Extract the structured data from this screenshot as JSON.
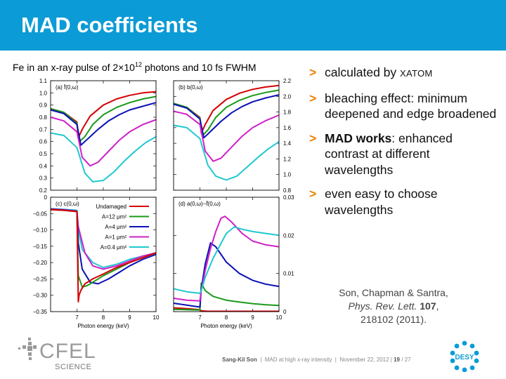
{
  "header": {
    "title": "MAD coefficients"
  },
  "caption": {
    "prefix": "Fe in an x-ray pulse of 2×10",
    "exp": "12",
    "suffix": " photons and 10 fs FWHM"
  },
  "bullets": [
    {
      "marker": ">",
      "parts": [
        {
          "t": "calculated by "
        },
        {
          "t": "XATOM",
          "cls": "smallcaps"
        }
      ]
    },
    {
      "marker": ">",
      "parts": [
        {
          "t": "bleaching effect: minimum deepened and edge broadened"
        }
      ]
    },
    {
      "marker": ">",
      "parts": [
        {
          "t": "MAD works",
          "b": true
        },
        {
          "t": ": enhanced contrast at different wavelengths"
        }
      ]
    },
    {
      "marker": ">",
      "parts": [
        {
          "t": "even easy to choose wavelengths"
        }
      ]
    }
  ],
  "reference": {
    "authors": "Son, Chapman & Santra,",
    "journal": "Phys. Rev. Lett.",
    "volume": "107",
    "pages_year": "218102 (2011)."
  },
  "footer": {
    "author": "Sang-Kil Son",
    "talk": "MAD at high x-ray intensity",
    "date": "November 22, 2012",
    "page": "19",
    "total": "/ 27"
  },
  "logos": {
    "cfel_main": "CFEL",
    "cfel_sub": "SCIENCE",
    "desy": "DESY"
  },
  "colors": {
    "accent": "#0b9bd6",
    "marker": "#ef7d00",
    "undamaged": "#d40000",
    "a12": "#1a9a1a",
    "a4": "#0a10b4",
    "a1": "#d020c8",
    "a04": "#20c8d0"
  },
  "chart_data": [
    {
      "type": "line",
      "panel_label": "(a) f̄(0,ω)",
      "xlim": [
        6,
        10
      ],
      "ylim": [
        0.2,
        1.1
      ],
      "yticks": [
        "0.2",
        "0.3",
        "0.4",
        "0.5",
        "0.6",
        "0.7",
        "0.8",
        "0.9",
        "1.0",
        "1.1"
      ],
      "series": [
        {
          "color": "undamaged",
          "x": [
            6,
            6.5,
            7,
            7.05,
            7.2,
            7.5,
            8,
            8.5,
            9,
            9.5,
            10
          ],
          "y": [
            0.87,
            0.84,
            0.76,
            0.63,
            0.7,
            0.81,
            0.9,
            0.95,
            0.98,
            1.0,
            1.01
          ]
        },
        {
          "color": "a12",
          "x": [
            6,
            6.5,
            7,
            7.1,
            7.3,
            7.6,
            8,
            8.5,
            9,
            9.5,
            10
          ],
          "y": [
            0.87,
            0.84,
            0.75,
            0.6,
            0.64,
            0.74,
            0.82,
            0.88,
            0.92,
            0.95,
            0.97
          ]
        },
        {
          "color": "a4",
          "x": [
            6,
            6.5,
            7,
            7.15,
            7.4,
            7.8,
            8.2,
            8.6,
            9,
            9.5,
            10
          ],
          "y": [
            0.86,
            0.83,
            0.74,
            0.57,
            0.62,
            0.7,
            0.77,
            0.82,
            0.86,
            0.89,
            0.92
          ]
        },
        {
          "color": "a1",
          "x": [
            6,
            6.5,
            7,
            7.2,
            7.5,
            7.8,
            8.2,
            8.6,
            9,
            9.5,
            10
          ],
          "y": [
            0.8,
            0.77,
            0.68,
            0.47,
            0.4,
            0.43,
            0.52,
            0.61,
            0.68,
            0.74,
            0.78
          ]
        },
        {
          "color": "a04",
          "x": [
            6,
            6.5,
            7,
            7.3,
            7.6,
            8,
            8.4,
            8.8,
            9.2,
            9.6,
            10
          ],
          "y": [
            0.67,
            0.65,
            0.55,
            0.34,
            0.27,
            0.28,
            0.35,
            0.44,
            0.52,
            0.59,
            0.64
          ]
        }
      ]
    },
    {
      "type": "line",
      "panel_label": "(b) b(0,ω)",
      "xlim": [
        6,
        10
      ],
      "ylim": [
        0.8,
        2.2
      ],
      "yticks": [
        "0.8",
        "1.0",
        "1.2",
        "1.4",
        "1.6",
        "1.8",
        "2.0",
        "2.2"
      ],
      "series": [
        {
          "color": "undamaged",
          "x": [
            6,
            6.5,
            7,
            7.05,
            7.2,
            7.5,
            8,
            8.5,
            9,
            9.5,
            10
          ],
          "y": [
            1.91,
            1.86,
            1.73,
            1.53,
            1.64,
            1.82,
            1.96,
            2.04,
            2.09,
            2.12,
            2.14
          ]
        },
        {
          "color": "a12",
          "x": [
            6,
            6.5,
            7,
            7.1,
            7.3,
            7.6,
            8,
            8.5,
            9,
            9.5,
            10
          ],
          "y": [
            1.91,
            1.86,
            1.72,
            1.5,
            1.57,
            1.73,
            1.86,
            1.95,
            2.01,
            2.05,
            2.08
          ]
        },
        {
          "color": "a4",
          "x": [
            6,
            6.5,
            7,
            7.15,
            7.4,
            7.8,
            8.2,
            8.6,
            9,
            9.5,
            10
          ],
          "y": [
            1.9,
            1.85,
            1.71,
            1.47,
            1.55,
            1.68,
            1.79,
            1.87,
            1.93,
            1.98,
            2.02
          ]
        },
        {
          "color": "a1",
          "x": [
            6,
            6.5,
            7,
            7.2,
            7.5,
            7.8,
            8.2,
            8.6,
            9,
            9.5,
            10
          ],
          "y": [
            1.81,
            1.77,
            1.64,
            1.3,
            1.17,
            1.21,
            1.35,
            1.49,
            1.6,
            1.69,
            1.76
          ]
        },
        {
          "color": "a04",
          "x": [
            6,
            6.5,
            7,
            7.3,
            7.6,
            8,
            8.4,
            8.8,
            9.2,
            9.6,
            10
          ],
          "y": [
            1.63,
            1.6,
            1.46,
            1.12,
            0.98,
            0.93,
            0.98,
            1.1,
            1.22,
            1.33,
            1.42
          ]
        }
      ]
    },
    {
      "type": "line",
      "panel_label": "(c) c(0,ω)",
      "xlim": [
        6,
        10
      ],
      "ylim": [
        -0.35,
        0
      ],
      "xticks": [
        "7",
        "8",
        "9",
        "10"
      ],
      "yticks": [
        "−0.35",
        "−0.30",
        "−0.25",
        "−0.20",
        "−0.15",
        "−0.10",
        "−0.05",
        "0"
      ],
      "xlabel": "Photon energy (keV)",
      "legend": [
        "Undamaged",
        "A=12 μm²",
        "A=4 μm²",
        "A=1 μm²",
        "A=0.4 μm²"
      ],
      "series": [
        {
          "color": "a04",
          "x": [
            6,
            6.5,
            7,
            7.05,
            7.2,
            7.6,
            8,
            8.5,
            9,
            9.5,
            10
          ],
          "y": [
            -0.035,
            -0.037,
            -0.04,
            -0.1,
            -0.16,
            -0.2,
            -0.215,
            -0.205,
            -0.19,
            -0.18,
            -0.17
          ]
        },
        {
          "color": "a1",
          "x": [
            6,
            6.5,
            7,
            7.05,
            7.3,
            7.6,
            8,
            8.5,
            9,
            9.5,
            10
          ],
          "y": [
            -0.036,
            -0.038,
            -0.042,
            -0.09,
            -0.17,
            -0.21,
            -0.22,
            -0.21,
            -0.195,
            -0.18,
            -0.17
          ]
        },
        {
          "color": "a4",
          "x": [
            6,
            6.5,
            7,
            7.05,
            7.2,
            7.5,
            7.8,
            8.2,
            8.6,
            9,
            9.5,
            10
          ],
          "y": [
            -0.037,
            -0.039,
            -0.043,
            -0.14,
            -0.22,
            -0.26,
            -0.265,
            -0.25,
            -0.23,
            -0.21,
            -0.19,
            -0.175
          ]
        },
        {
          "color": "a12",
          "x": [
            6,
            6.5,
            7,
            7.05,
            7.2,
            7.4,
            7.7,
            8,
            8.5,
            9,
            9.5,
            10
          ],
          "y": [
            -0.038,
            -0.04,
            -0.044,
            -0.24,
            -0.275,
            -0.27,
            -0.255,
            -0.24,
            -0.22,
            -0.2,
            -0.185,
            -0.17
          ]
        },
        {
          "color": "undamaged",
          "x": [
            6,
            6.5,
            7,
            7.05,
            7.08,
            7.15,
            7.3,
            7.6,
            8,
            8.5,
            9,
            9.5,
            10
          ],
          "y": [
            -0.038,
            -0.04,
            -0.044,
            -0.32,
            -0.3,
            -0.285,
            -0.265,
            -0.25,
            -0.235,
            -0.215,
            -0.2,
            -0.185,
            -0.17
          ]
        }
      ]
    },
    {
      "type": "line",
      "panel_label": "(d) a(0,ω)−f̄(0,ω)",
      "xlim": [
        6,
        10
      ],
      "ylim": [
        0,
        0.03
      ],
      "xticks": [
        "7",
        "8",
        "9",
        "10"
      ],
      "yticks": [
        "0",
        "0.01",
        "0.02",
        "0.03"
      ],
      "xlabel": "Photon energy (keV)",
      "series": [
        {
          "color": "undamaged",
          "x": [
            6,
            6.5,
            7,
            7.05,
            7.3,
            8,
            9,
            10
          ],
          "y": [
            0.001,
            0.0008,
            0.0005,
            0.0002,
            0.0001,
            0.0001,
            0.0001,
            0.0001
          ]
        },
        {
          "color": "a12",
          "x": [
            6,
            6.5,
            7,
            7.05,
            7.2,
            7.5,
            8,
            8.5,
            9,
            9.5,
            10
          ],
          "y": [
            0.0006,
            0.0005,
            0.0004,
            0.0075,
            0.0055,
            0.004,
            0.003,
            0.0025,
            0.0021,
            0.0018,
            0.0016
          ]
        },
        {
          "color": "a4",
          "x": [
            6,
            6.5,
            7,
            7.05,
            7.2,
            7.4,
            7.6,
            7.8,
            8,
            8.5,
            9,
            9.5,
            10
          ],
          "y": [
            0.0022,
            0.0017,
            0.0012,
            0.006,
            0.0125,
            0.018,
            0.017,
            0.015,
            0.013,
            0.01,
            0.0082,
            0.0072,
            0.0066
          ]
        },
        {
          "color": "a1",
          "x": [
            6,
            6.5,
            7,
            7.05,
            7.2,
            7.4,
            7.6,
            7.8,
            7.95,
            8.2,
            8.6,
            9,
            9.5,
            10
          ],
          "y": [
            0.0035,
            0.003,
            0.0028,
            0.0055,
            0.0108,
            0.0165,
            0.021,
            0.0245,
            0.025,
            0.0235,
            0.0205,
            0.0185,
            0.0175,
            0.017
          ]
        },
        {
          "color": "a04",
          "x": [
            6,
            6.5,
            7,
            7.05,
            7.2,
            7.5,
            8,
            8.3,
            8.6,
            9,
            9.5,
            10
          ],
          "y": [
            0.006,
            0.0052,
            0.0048,
            0.0055,
            0.009,
            0.014,
            0.0205,
            0.0222,
            0.0216,
            0.021,
            0.0205,
            0.02
          ]
        }
      ]
    }
  ]
}
